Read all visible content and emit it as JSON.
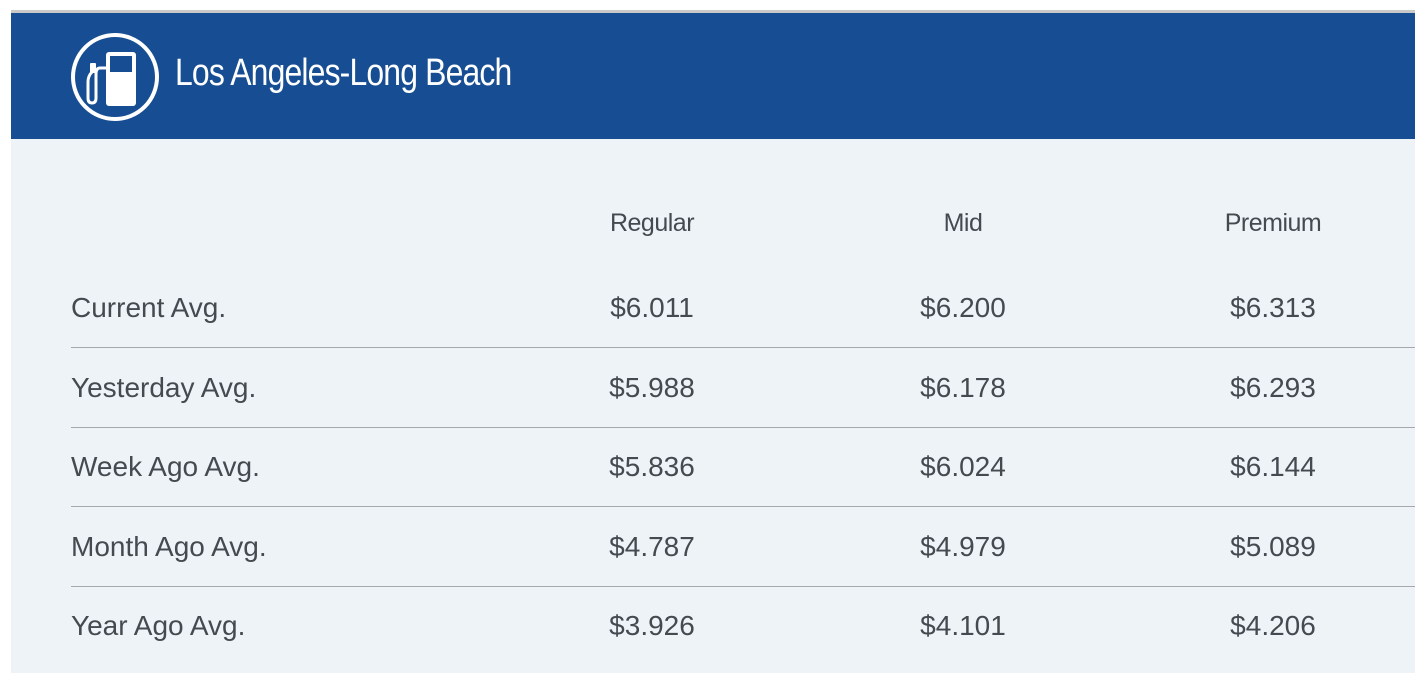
{
  "header": {
    "title": "Los Angeles-Long Beach",
    "icon": "gas-pump-icon"
  },
  "columns": [
    "Regular",
    "Mid",
    "Premium"
  ],
  "rows": [
    {
      "label": "Current Avg.",
      "values": [
        "$6.011",
        "$6.200",
        "$6.313"
      ]
    },
    {
      "label": "Yesterday Avg.",
      "values": [
        "$5.988",
        "$6.178",
        "$6.293"
      ]
    },
    {
      "label": "Week Ago Avg.",
      "values": [
        "$5.836",
        "$6.024",
        "$6.144"
      ]
    },
    {
      "label": "Month Ago Avg.",
      "values": [
        "$4.787",
        "$4.979",
        "$5.089"
      ]
    },
    {
      "label": "Year Ago Avg.",
      "values": [
        "$3.926",
        "$4.101",
        "$4.206"
      ]
    }
  ],
  "colors": {
    "header_bg": "#174d92",
    "body_bg": "#eef3f8",
    "text": "#444a50",
    "divider": "#a6a9ac"
  }
}
